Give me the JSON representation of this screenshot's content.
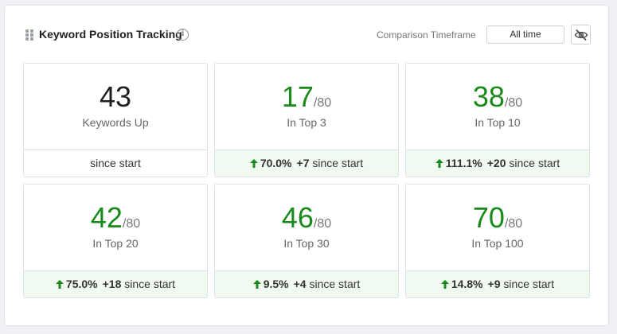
{
  "header": {
    "title": "Keyword Position Tracking",
    "timeframe_label": "Comparison Timeframe",
    "timeframe_value": "All time"
  },
  "colors": {
    "positive": "#1a8a1a",
    "positive_bg": "#f0faf0"
  },
  "cards": [
    {
      "value": "43",
      "denominator": "",
      "label": "Keywords Up",
      "pct": "",
      "delta": "",
      "since": "since start"
    },
    {
      "value": "17",
      "denominator": "/80",
      "label": "In Top 3",
      "pct": "70.0%",
      "delta": "+7",
      "since": "since start"
    },
    {
      "value": "38",
      "denominator": "/80",
      "label": "In Top 10",
      "pct": "111.1%",
      "delta": "+20",
      "since": "since start"
    },
    {
      "value": "42",
      "denominator": "/80",
      "label": "In Top 20",
      "pct": "75.0%",
      "delta": "+18",
      "since": "since start"
    },
    {
      "value": "46",
      "denominator": "/80",
      "label": "In Top 30",
      "pct": "9.5%",
      "delta": "+4",
      "since": "since start"
    },
    {
      "value": "70",
      "denominator": "/80",
      "label": "In Top 100",
      "pct": "14.8%",
      "delta": "+9",
      "since": "since start"
    }
  ]
}
